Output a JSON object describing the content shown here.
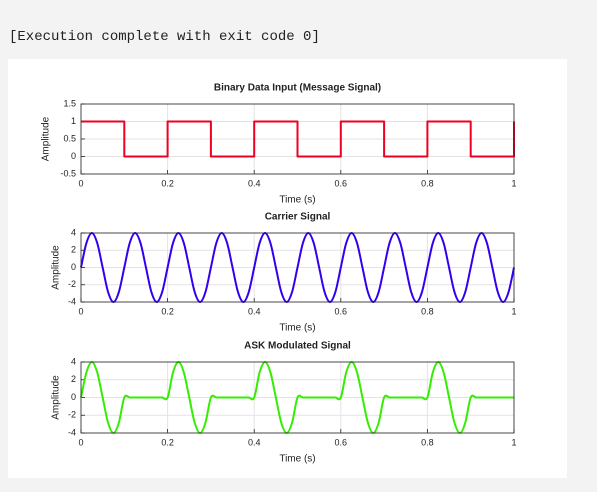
{
  "status": "[Execution complete with exit code 0]",
  "chart_data": [
    {
      "type": "line",
      "title": "Binary Data Input (Message Signal)",
      "xlabel": "Time (s)",
      "ylabel": "Amplitude",
      "color": "#ee0022",
      "x": [
        0,
        0.1,
        0.1,
        0.2,
        0.2,
        0.3,
        0.3,
        0.4,
        0.4,
        0.5,
        0.5,
        0.6,
        0.6,
        0.7,
        0.7,
        0.8,
        0.8,
        0.9,
        0.9,
        1,
        1
      ],
      "values": [
        1,
        1,
        0,
        0,
        1,
        1,
        0,
        0,
        1,
        1,
        0,
        0,
        1,
        1,
        0,
        0,
        1,
        1,
        0,
        0,
        1
      ],
      "xlim": [
        0,
        1
      ],
      "xticks": [
        0,
        0.2,
        0.4,
        0.6,
        0.8,
        1
      ],
      "ylim": [
        -0.5,
        1.5
      ],
      "yticks": [
        -0.5,
        0,
        0.5,
        1,
        1.5
      ],
      "grid": true
    },
    {
      "type": "line",
      "title": "Carrier Signal",
      "xlabel": "Time (s)",
      "ylabel": "Amplitude",
      "color": "#3300ee",
      "x": [
        0,
        0.0125,
        0.025,
        0.0375,
        0.05,
        0.0625,
        0.075,
        0.0875,
        0.1,
        0.1125,
        0.125,
        0.1375,
        0.15,
        0.1625,
        0.175,
        0.1875,
        0.2,
        0.2125,
        0.225,
        0.2375,
        0.25,
        0.2625,
        0.275,
        0.2875,
        0.3,
        0.3125,
        0.325,
        0.3375,
        0.35,
        0.3625,
        0.375,
        0.3875,
        0.4,
        0.4125,
        0.425,
        0.4375,
        0.45,
        0.4625,
        0.475,
        0.4875,
        0.5,
        0.5125,
        0.525,
        0.5375,
        0.55,
        0.5625,
        0.575,
        0.5875,
        0.6,
        0.6125,
        0.625,
        0.6375,
        0.65,
        0.6625,
        0.675,
        0.6875,
        0.7,
        0.7125,
        0.725,
        0.7375,
        0.75,
        0.7625,
        0.775,
        0.7875,
        0.8,
        0.8125,
        0.825,
        0.8375,
        0.85,
        0.8625,
        0.875,
        0.8875,
        0.9,
        0.9125,
        0.925,
        0.9375,
        0.95,
        0.9625,
        0.975,
        0.9875,
        1
      ],
      "values": [
        0,
        2.83,
        4,
        2.83,
        0,
        -2.83,
        -4,
        -2.83,
        0,
        2.83,
        4,
        2.83,
        0,
        -2.83,
        -4,
        -2.83,
        0,
        2.83,
        4,
        2.83,
        0,
        -2.83,
        -4,
        -2.83,
        0,
        2.83,
        4,
        2.83,
        0,
        -2.83,
        -4,
        -2.83,
        0,
        2.83,
        4,
        2.83,
        0,
        -2.83,
        -4,
        -2.83,
        0,
        2.83,
        4,
        2.83,
        0,
        -2.83,
        -4,
        -2.83,
        0,
        2.83,
        4,
        2.83,
        0,
        -2.83,
        -4,
        -2.83,
        0,
        2.83,
        4,
        2.83,
        0,
        -2.83,
        -4,
        -2.83,
        0,
        2.83,
        4,
        2.83,
        0,
        -2.83,
        -4,
        -2.83,
        0,
        2.83,
        4,
        2.83,
        0,
        -2.83,
        -4,
        -2.83,
        0
      ],
      "xlim": [
        0,
        1
      ],
      "xticks": [
        0,
        0.2,
        0.4,
        0.6,
        0.8,
        1
      ],
      "ylim": [
        -4,
        4
      ],
      "yticks": [
        -4,
        -2,
        0,
        2,
        4
      ],
      "grid": true
    },
    {
      "type": "line",
      "title": "ASK Modulated Signal",
      "xlabel": "Time (s)",
      "ylabel": "Amplitude",
      "color": "#33ee00",
      "x": [
        0,
        0.0125,
        0.025,
        0.0375,
        0.05,
        0.0625,
        0.075,
        0.0875,
        0.1,
        0.1125,
        0.125,
        0.1375,
        0.15,
        0.1625,
        0.175,
        0.1875,
        0.2,
        0.2125,
        0.225,
        0.2375,
        0.25,
        0.2625,
        0.275,
        0.2875,
        0.3,
        0.3125,
        0.325,
        0.3375,
        0.35,
        0.3625,
        0.375,
        0.3875,
        0.4,
        0.4125,
        0.425,
        0.4375,
        0.45,
        0.4625,
        0.475,
        0.4875,
        0.5,
        0.5125,
        0.525,
        0.5375,
        0.55,
        0.5625,
        0.575,
        0.5875,
        0.6,
        0.6125,
        0.625,
        0.6375,
        0.65,
        0.6625,
        0.675,
        0.6875,
        0.7,
        0.7125,
        0.725,
        0.7375,
        0.75,
        0.7625,
        0.775,
        0.7875,
        0.8,
        0.8125,
        0.825,
        0.8375,
        0.85,
        0.8625,
        0.875,
        0.8875,
        0.9,
        0.9125,
        0.925,
        0.9375,
        0.95,
        0.9625,
        0.975,
        0.9875,
        1
      ],
      "values": [
        0,
        2.83,
        4,
        2.83,
        0,
        -2.83,
        -4,
        -2.83,
        0,
        0,
        0,
        0,
        0,
        0,
        0,
        0,
        0,
        2.83,
        4,
        2.83,
        0,
        -2.83,
        -4,
        -2.83,
        0,
        0,
        0,
        0,
        0,
        0,
        0,
        0,
        0,
        2.83,
        4,
        2.83,
        0,
        -2.83,
        -4,
        -2.83,
        0,
        0,
        0,
        0,
        0,
        0,
        0,
        0,
        0,
        2.83,
        4,
        2.83,
        0,
        -2.83,
        -4,
        -2.83,
        0,
        0,
        0,
        0,
        0,
        0,
        0,
        0,
        0,
        2.83,
        4,
        2.83,
        0,
        -2.83,
        -4,
        -2.83,
        0,
        0,
        0,
        0,
        0,
        0,
        0,
        0,
        0
      ],
      "xlim": [
        0,
        1
      ],
      "xticks": [
        0,
        0.2,
        0.4,
        0.6,
        0.8,
        1
      ],
      "ylim": [
        -4,
        4
      ],
      "yticks": [
        -4,
        -2,
        0,
        2,
        4
      ],
      "grid": true
    }
  ]
}
